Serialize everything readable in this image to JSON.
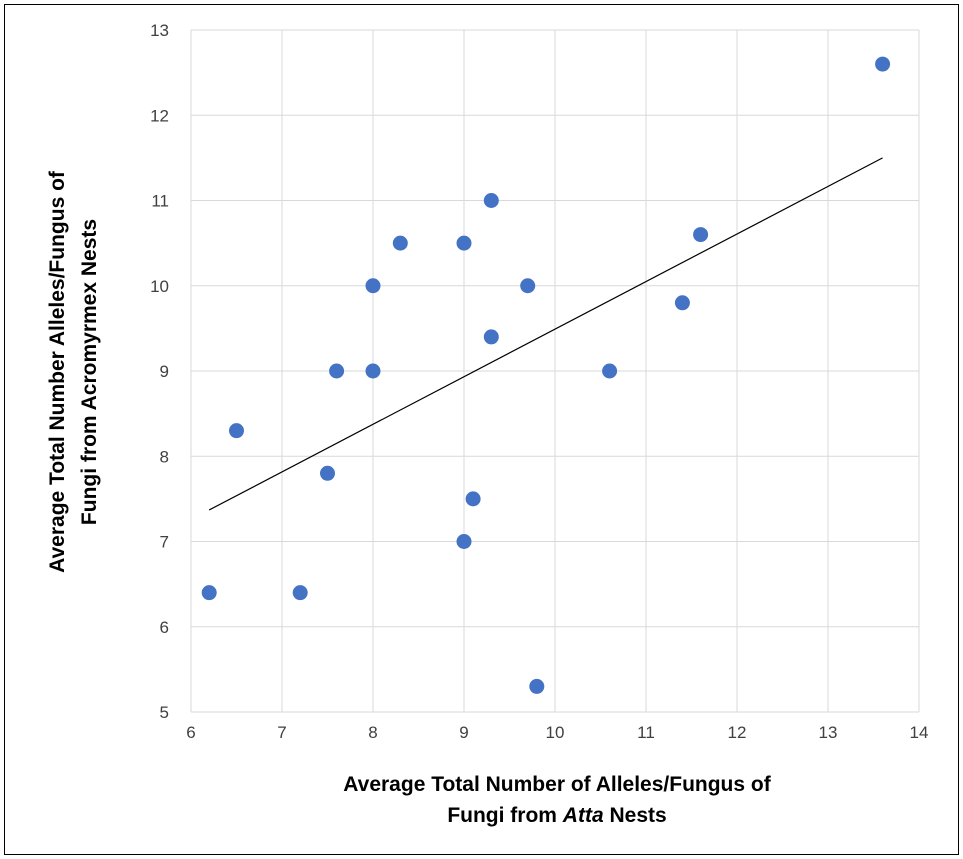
{
  "chart_data": {
    "type": "scatter",
    "xlabel_line1": "Average Total Number of Alleles/Fungus of",
    "xlabel_line2_pre": "Fungi from ",
    "xlabel_line2_em": "Atta",
    "xlabel_line2_post": " Nests",
    "ylabel_line1": "Average Total Number Alleles/Fungus of",
    "ylabel_line2": "Fungi from Acromyrmex Nests",
    "xlim": [
      6,
      14
    ],
    "ylim": [
      5,
      13
    ],
    "x_ticks": [
      6,
      7,
      8,
      9,
      10,
      11,
      12,
      13,
      14
    ],
    "y_ticks": [
      5,
      6,
      7,
      8,
      9,
      10,
      11,
      12,
      13
    ],
    "grid": true,
    "marker_color": "#4472C4",
    "trendline_color": "#000000",
    "points": [
      {
        "x": 6.2,
        "y": 6.4
      },
      {
        "x": 6.5,
        "y": 8.3
      },
      {
        "x": 7.2,
        "y": 6.4
      },
      {
        "x": 7.5,
        "y": 7.8
      },
      {
        "x": 7.6,
        "y": 9.0
      },
      {
        "x": 8.0,
        "y": 9.0
      },
      {
        "x": 8.0,
        "y": 10.0
      },
      {
        "x": 8.3,
        "y": 10.5
      },
      {
        "x": 9.0,
        "y": 10.5
      },
      {
        "x": 9.0,
        "y": 7.0
      },
      {
        "x": 9.1,
        "y": 7.5
      },
      {
        "x": 9.3,
        "y": 11.0
      },
      {
        "x": 9.3,
        "y": 9.4
      },
      {
        "x": 9.7,
        "y": 10.0
      },
      {
        "x": 9.8,
        "y": 5.3
      },
      {
        "x": 10.6,
        "y": 9.0
      },
      {
        "x": 11.4,
        "y": 9.8
      },
      {
        "x": 11.6,
        "y": 10.6
      },
      {
        "x": 13.6,
        "y": 12.6
      }
    ],
    "trendline": {
      "x": [
        6.2,
        13.6
      ],
      "y": [
        7.37,
        11.5
      ]
    }
  }
}
